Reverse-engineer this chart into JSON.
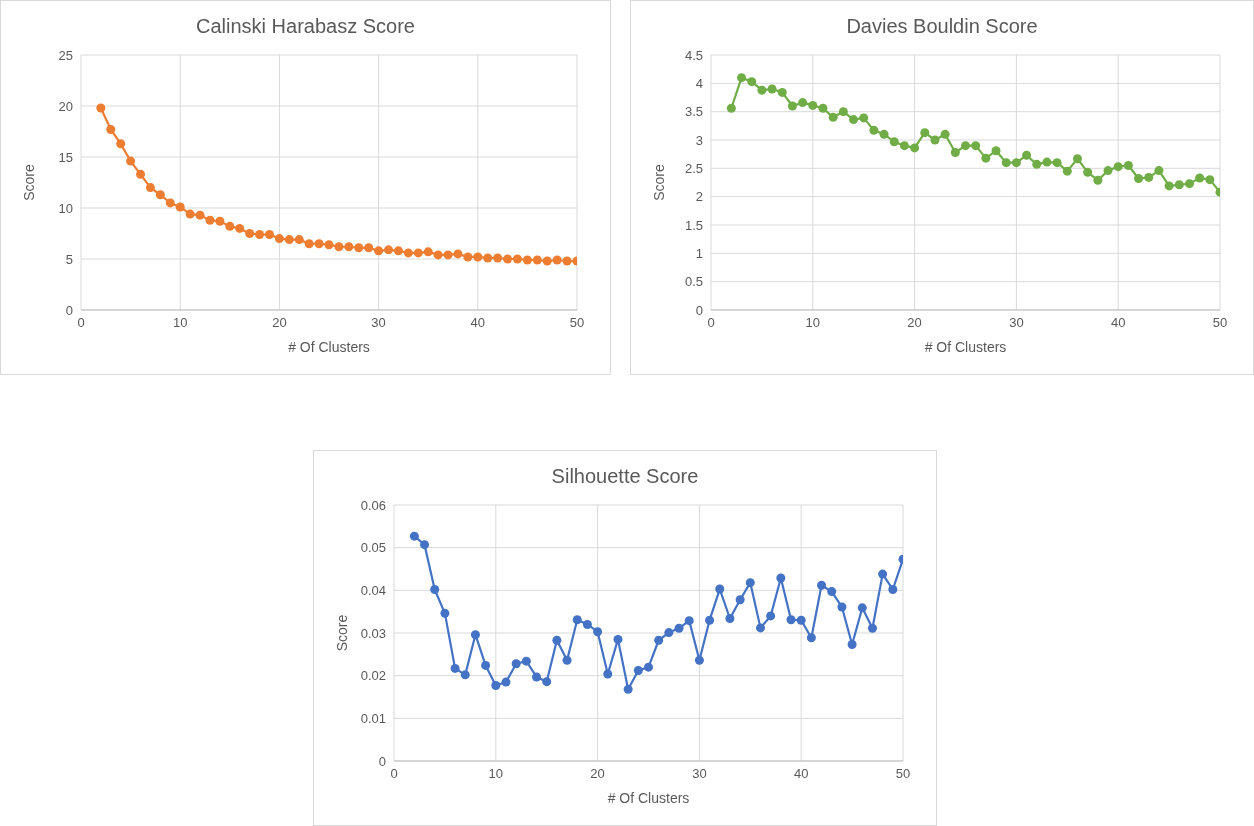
{
  "chart_data": [
    {
      "type": "line",
      "title": "Calinski Harabasz Score",
      "xlabel": "# Of Clusters",
      "ylabel": "Score",
      "x": [
        2,
        3,
        4,
        5,
        6,
        7,
        8,
        9,
        10,
        11,
        12,
        13,
        14,
        15,
        16,
        17,
        18,
        19,
        20,
        21,
        22,
        23,
        24,
        25,
        26,
        27,
        28,
        29,
        30,
        31,
        32,
        33,
        34,
        35,
        36,
        37,
        38,
        39,
        40,
        41,
        42,
        43,
        44,
        45,
        46,
        47,
        48,
        49,
        50
      ],
      "series": [
        {
          "color": "#ed7d31",
          "values": [
            19.8,
            17.7,
            16.3,
            14.6,
            13.3,
            12.0,
            11.3,
            10.5,
            10.1,
            9.4,
            9.3,
            8.8,
            8.7,
            8.2,
            8.0,
            7.5,
            7.4,
            7.4,
            7.0,
            6.9,
            6.9,
            6.5,
            6.5,
            6.4,
            6.2,
            6.2,
            6.1,
            6.1,
            5.8,
            5.9,
            5.8,
            5.6,
            5.6,
            5.7,
            5.4,
            5.4,
            5.5,
            5.2,
            5.2,
            5.1,
            5.1,
            5.0,
            5.0,
            4.9,
            4.9,
            4.8,
            4.9,
            4.8,
            4.8
          ]
        }
      ],
      "xlim": [
        0,
        50
      ],
      "xticks": [
        0,
        10,
        20,
        30,
        40,
        50
      ],
      "ylim": [
        0,
        25
      ],
      "yticks": [
        0,
        5,
        10,
        15,
        20,
        25
      ],
      "grid": true,
      "marker": "circle"
    },
    {
      "type": "line",
      "title": "Davies Bouldin Score",
      "xlabel": "# Of Clusters",
      "ylabel": "Score",
      "x": [
        2,
        3,
        4,
        5,
        6,
        7,
        8,
        9,
        10,
        11,
        12,
        13,
        14,
        15,
        16,
        17,
        18,
        19,
        20,
        21,
        22,
        23,
        24,
        25,
        26,
        27,
        28,
        29,
        30,
        31,
        32,
        33,
        34,
        35,
        36,
        37,
        38,
        39,
        40,
        41,
        42,
        43,
        44,
        45,
        46,
        47,
        48,
        49,
        50
      ],
      "series": [
        {
          "color": "#70ad47",
          "values": [
            3.56,
            4.1,
            4.03,
            3.88,
            3.9,
            3.84,
            3.6,
            3.66,
            3.61,
            3.56,
            3.4,
            3.5,
            3.36,
            3.39,
            3.17,
            3.1,
            2.97,
            2.9,
            2.86,
            3.13,
            3.0,
            3.1,
            2.78,
            2.9,
            2.9,
            2.68,
            2.81,
            2.6,
            2.6,
            2.73,
            2.57,
            2.61,
            2.6,
            2.45,
            2.67,
            2.43,
            2.29,
            2.46,
            2.53,
            2.55,
            2.32,
            2.34,
            2.46,
            2.19,
            2.21,
            2.23,
            2.33,
            2.3,
            2.08
          ]
        }
      ],
      "xlim": [
        0,
        50
      ],
      "xticks": [
        0,
        10,
        20,
        30,
        40,
        50
      ],
      "ylim": [
        0,
        4.5
      ],
      "yticks": [
        0,
        0.5,
        1,
        1.5,
        2,
        2.5,
        3,
        3.5,
        4,
        4.5
      ],
      "grid": true,
      "marker": "circle"
    },
    {
      "type": "line",
      "title": "Silhouette Score",
      "xlabel": "# Of Clusters",
      "ylabel": "Score",
      "x": [
        2,
        3,
        4,
        5,
        6,
        7,
        8,
        9,
        10,
        11,
        12,
        13,
        14,
        15,
        16,
        17,
        18,
        19,
        20,
        21,
        22,
        23,
        24,
        25,
        26,
        27,
        28,
        29,
        30,
        31,
        32,
        33,
        34,
        35,
        36,
        37,
        38,
        39,
        40,
        41,
        42,
        43,
        44,
        45,
        46,
        47,
        48,
        49,
        50
      ],
      "series": [
        {
          "color": "#4472c4",
          "values": [
            0.0527,
            0.0507,
            0.0402,
            0.0346,
            0.0217,
            0.0202,
            0.0296,
            0.0224,
            0.0177,
            0.0185,
            0.0228,
            0.0234,
            0.0197,
            0.0186,
            0.0283,
            0.0236,
            0.0331,
            0.032,
            0.0303,
            0.0204,
            0.0285,
            0.0168,
            0.0212,
            0.022,
            0.0283,
            0.0301,
            0.0311,
            0.0329,
            0.0236,
            0.033,
            0.0403,
            0.0334,
            0.0378,
            0.0418,
            0.0312,
            0.034,
            0.0429,
            0.0331,
            0.033,
            0.0289,
            0.0412,
            0.0397,
            0.0361,
            0.0273,
            0.0359,
            0.0311,
            0.0438,
            0.0402,
            0.0473
          ]
        }
      ],
      "xlim": [
        0,
        50
      ],
      "xticks": [
        0,
        10,
        20,
        30,
        40,
        50
      ],
      "ylim": [
        0,
        0.06
      ],
      "yticks": [
        0,
        0.01,
        0.02,
        0.03,
        0.04,
        0.05,
        0.06
      ],
      "grid": true,
      "marker": "circle"
    }
  ]
}
